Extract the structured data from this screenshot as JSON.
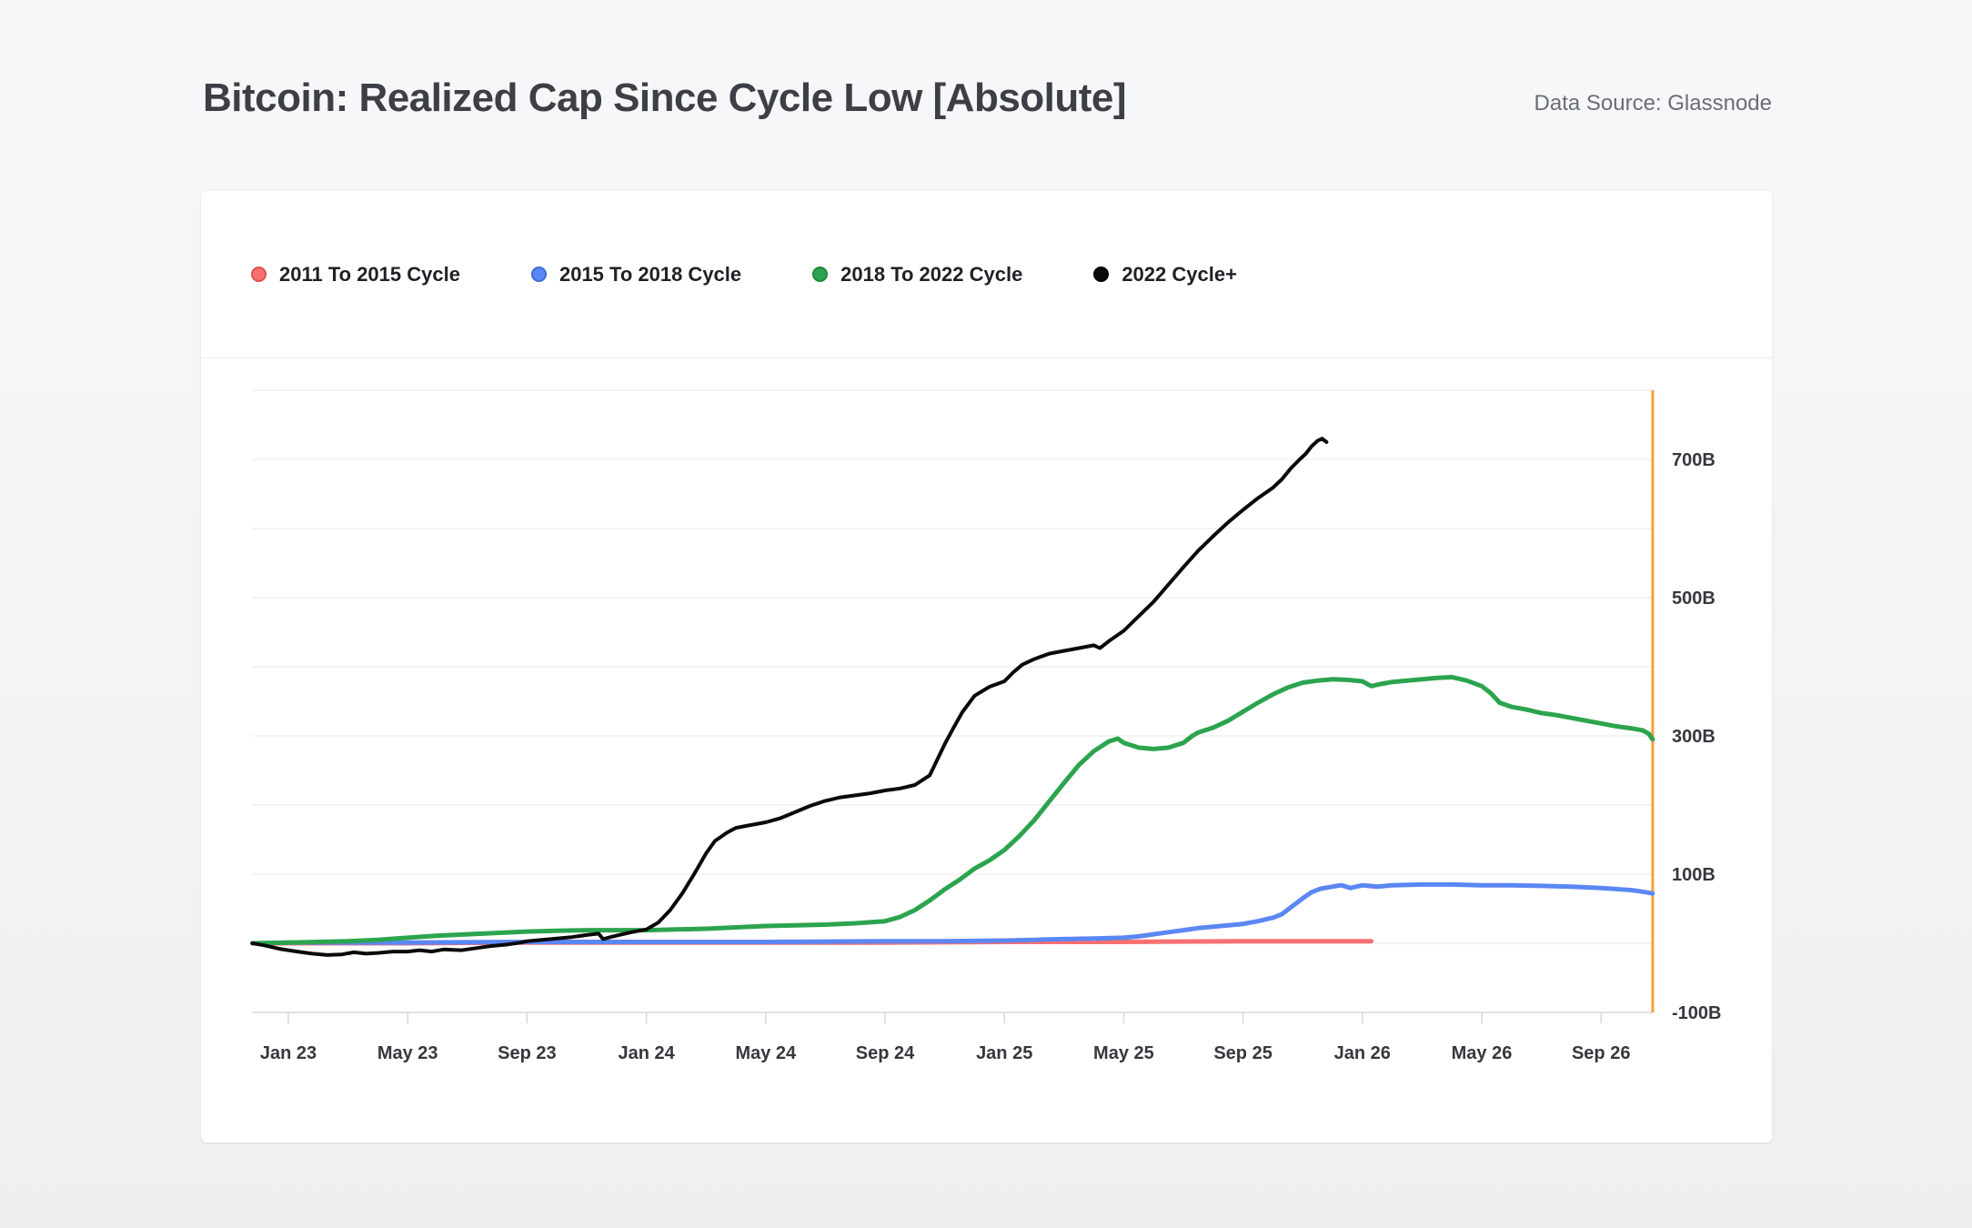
{
  "header": {
    "title": "Bitcoin: Realized Cap Since Cycle Low [Absolute]",
    "data_source": "Data Source: Glassnode"
  },
  "legend": {
    "items": [
      {
        "label": "2011 To 2015 Cycle",
        "color": "#f87070",
        "border_color": "#e04f4f"
      },
      {
        "label": "2015 To 2018 Cycle",
        "color": "#5b87f2",
        "border_color": "#3e68d8"
      },
      {
        "label": "2018 To 2022 Cycle",
        "color": "#2ca44e",
        "border_color": "#1e8a3c"
      },
      {
        "label": "2022 Cycle+",
        "color": "#0a0a0a",
        "border_color": "#000000"
      }
    ]
  },
  "chart_data": {
    "type": "line",
    "title": "Bitcoin: Realized Cap Since Cycle Low [Absolute]",
    "x_unit": "months since Jan 2023",
    "xlim": [
      -1.3,
      45.8
    ],
    "ylim": [
      -100,
      800
    ],
    "grid": "horizontal-only",
    "gridline_values": [
      800,
      700,
      600,
      500,
      400,
      300,
      200,
      100,
      0,
      -100
    ],
    "y_axis_side": "right",
    "y_ticks": [
      {
        "label": "700B",
        "value": 700
      },
      {
        "label": "500B",
        "value": 500
      },
      {
        "label": "300B",
        "value": 300
      },
      {
        "label": "100B",
        "value": 100
      },
      {
        "label": "-100B",
        "value": -100
      }
    ],
    "x_ticks": [
      {
        "label": "Jan 23",
        "t": 0
      },
      {
        "label": "May 23",
        "t": 4
      },
      {
        "label": "Sep 23",
        "t": 8
      },
      {
        "label": "Jan 24",
        "t": 12
      },
      {
        "label": "May 24",
        "t": 16
      },
      {
        "label": "Sep 24",
        "t": 20
      },
      {
        "label": "Jan 25",
        "t": 24
      },
      {
        "label": "May 25",
        "t": 28
      },
      {
        "label": "Sep 25",
        "t": 32
      },
      {
        "label": "Jan 26",
        "t": 36
      },
      {
        "label": "May 26",
        "t": 40
      },
      {
        "label": "Sep 26",
        "t": 44
      }
    ],
    "end_marker_line": {
      "t": 45.73,
      "color": "#f9a03a",
      "name": "cycle-window-end-marker"
    },
    "colors": {
      "gridline": "#f0f0f3",
      "baseline": "#e2e2e6",
      "tick": "#d6d7db",
      "axis_text": "#35383d"
    },
    "unit": "USD billions",
    "series": [
      {
        "name": "2011 To 2015 Cycle",
        "color": "#f87070",
        "width": 5,
        "points": [
          [
            -1.2,
            0
          ],
          [
            0,
            0
          ],
          [
            4,
            0
          ],
          [
            8,
            1
          ],
          [
            12,
            1
          ],
          [
            16,
            1
          ],
          [
            20,
            1
          ],
          [
            24,
            2
          ],
          [
            28,
            2
          ],
          [
            32,
            3
          ],
          [
            34,
            3
          ],
          [
            36,
            3
          ],
          [
            36.3,
            3
          ]
        ]
      },
      {
        "name": "2015 To 2018 Cycle",
        "color": "#5b87f2",
        "width": 5,
        "points": [
          [
            -1.2,
            0
          ],
          [
            0,
            1
          ],
          [
            4,
            1
          ],
          [
            8,
            2
          ],
          [
            12,
            2
          ],
          [
            16,
            2
          ],
          [
            20,
            3
          ],
          [
            22,
            3
          ],
          [
            24,
            4
          ],
          [
            25,
            5
          ],
          [
            26,
            6
          ],
          [
            27,
            7
          ],
          [
            28,
            8
          ],
          [
            28.5,
            10
          ],
          [
            29,
            13
          ],
          [
            29.5,
            16
          ],
          [
            30,
            19
          ],
          [
            30.5,
            22
          ],
          [
            31,
            24
          ],
          [
            31.5,
            26
          ],
          [
            32,
            28
          ],
          [
            32.5,
            32
          ],
          [
            33,
            37
          ],
          [
            33.3,
            42
          ],
          [
            33.6,
            52
          ],
          [
            34,
            65
          ],
          [
            34.3,
            74
          ],
          [
            34.6,
            79
          ],
          [
            35,
            82
          ],
          [
            35.3,
            84
          ],
          [
            35.6,
            80
          ],
          [
            36,
            84
          ],
          [
            36.5,
            82
          ],
          [
            37,
            84
          ],
          [
            38,
            85
          ],
          [
            39,
            85
          ],
          [
            40,
            84
          ],
          [
            41,
            84
          ],
          [
            42,
            83
          ],
          [
            43,
            82
          ],
          [
            44,
            80
          ],
          [
            45,
            77
          ],
          [
            45.5,
            74
          ],
          [
            45.73,
            72
          ]
        ]
      },
      {
        "name": "2018 To 2022 Cycle",
        "color": "#2ca44e",
        "width": 5,
        "points": [
          [
            -1.2,
            0
          ],
          [
            0,
            1
          ],
          [
            1,
            2
          ],
          [
            2,
            3
          ],
          [
            3,
            5
          ],
          [
            4,
            8
          ],
          [
            5,
            11
          ],
          [
            6,
            13
          ],
          [
            7,
            15
          ],
          [
            8,
            17
          ],
          [
            9,
            18
          ],
          [
            10,
            19
          ],
          [
            11,
            19
          ],
          [
            12,
            19
          ],
          [
            13,
            20
          ],
          [
            14,
            21
          ],
          [
            15,
            23
          ],
          [
            16,
            25
          ],
          [
            17,
            26
          ],
          [
            18,
            27
          ],
          [
            19,
            29
          ],
          [
            20,
            32
          ],
          [
            20.5,
            38
          ],
          [
            21,
            48
          ],
          [
            21.5,
            62
          ],
          [
            22,
            78
          ],
          [
            22.5,
            92
          ],
          [
            23,
            108
          ],
          [
            23.5,
            120
          ],
          [
            24,
            135
          ],
          [
            24.5,
            155
          ],
          [
            25,
            178
          ],
          [
            25.5,
            205
          ],
          [
            26,
            232
          ],
          [
            26.5,
            258
          ],
          [
            27,
            278
          ],
          [
            27.5,
            292
          ],
          [
            27.8,
            296
          ],
          [
            28,
            290
          ],
          [
            28.5,
            283
          ],
          [
            29,
            281
          ],
          [
            29.5,
            283
          ],
          [
            30,
            290
          ],
          [
            30.3,
            300
          ],
          [
            30.5,
            305
          ],
          [
            31,
            312
          ],
          [
            31.5,
            322
          ],
          [
            32,
            335
          ],
          [
            32.5,
            348
          ],
          [
            33,
            360
          ],
          [
            33.5,
            370
          ],
          [
            34,
            377
          ],
          [
            34.5,
            380
          ],
          [
            35,
            382
          ],
          [
            35.5,
            381
          ],
          [
            36,
            379
          ],
          [
            36.3,
            372
          ],
          [
            36.6,
            375
          ],
          [
            37,
            378
          ],
          [
            37.5,
            380
          ],
          [
            38,
            382
          ],
          [
            38.5,
            384
          ],
          [
            39,
            385
          ],
          [
            39.5,
            380
          ],
          [
            40,
            372
          ],
          [
            40.3,
            362
          ],
          [
            40.6,
            348
          ],
          [
            41,
            342
          ],
          [
            41.5,
            338
          ],
          [
            42,
            333
          ],
          [
            42.5,
            330
          ],
          [
            43,
            326
          ],
          [
            43.5,
            322
          ],
          [
            44,
            318
          ],
          [
            44.5,
            314
          ],
          [
            45,
            311
          ],
          [
            45.4,
            308
          ],
          [
            45.6,
            303
          ],
          [
            45.73,
            295
          ]
        ]
      },
      {
        "name": "2022 Cycle+",
        "color": "#0a0a0a",
        "width": 4,
        "points": [
          [
            -1.2,
            0
          ],
          [
            -0.8,
            -3
          ],
          [
            -0.3,
            -8
          ],
          [
            0.3,
            -12
          ],
          [
            0.8,
            -15
          ],
          [
            1.3,
            -17
          ],
          [
            1.8,
            -16
          ],
          [
            2.2,
            -13
          ],
          [
            2.6,
            -15
          ],
          [
            3,
            -14
          ],
          [
            3.5,
            -12
          ],
          [
            4,
            -12
          ],
          [
            4.4,
            -10
          ],
          [
            4.8,
            -12
          ],
          [
            5.2,
            -9
          ],
          [
            5.8,
            -10
          ],
          [
            6.3,
            -7
          ],
          [
            6.8,
            -4
          ],
          [
            7.3,
            -2
          ],
          [
            7.8,
            1
          ],
          [
            8,
            3
          ],
          [
            8.5,
            5
          ],
          [
            9,
            7
          ],
          [
            9.5,
            9
          ],
          [
            10,
            12
          ],
          [
            10.4,
            14
          ],
          [
            10.55,
            6
          ],
          [
            10.8,
            9
          ],
          [
            11,
            11
          ],
          [
            11.5,
            16
          ],
          [
            12,
            20
          ],
          [
            12.4,
            30
          ],
          [
            12.8,
            48
          ],
          [
            13.2,
            72
          ],
          [
            13.6,
            100
          ],
          [
            14,
            130
          ],
          [
            14.3,
            148
          ],
          [
            14.7,
            160
          ],
          [
            15,
            167
          ],
          [
            15.5,
            171
          ],
          [
            16,
            175
          ],
          [
            16.5,
            181
          ],
          [
            17,
            190
          ],
          [
            17.5,
            199
          ],
          [
            18,
            206
          ],
          [
            18.5,
            211
          ],
          [
            19,
            214
          ],
          [
            19.5,
            217
          ],
          [
            20,
            221
          ],
          [
            20.5,
            224
          ],
          [
            21,
            229
          ],
          [
            21.5,
            243
          ],
          [
            22,
            288
          ],
          [
            22.3,
            312
          ],
          [
            22.6,
            335
          ],
          [
            23,
            358
          ],
          [
            23.5,
            371
          ],
          [
            24,
            379
          ],
          [
            24.3,
            392
          ],
          [
            24.6,
            403
          ],
          [
            25,
            411
          ],
          [
            25.5,
            419
          ],
          [
            26,
            423
          ],
          [
            26.5,
            427
          ],
          [
            27,
            431
          ],
          [
            27.2,
            427
          ],
          [
            27.5,
            437
          ],
          [
            28,
            452
          ],
          [
            28.5,
            473
          ],
          [
            29,
            494
          ],
          [
            29.5,
            519
          ],
          [
            30,
            544
          ],
          [
            30.5,
            568
          ],
          [
            31,
            589
          ],
          [
            31.5,
            609
          ],
          [
            32,
            627
          ],
          [
            32.5,
            644
          ],
          [
            33,
            659
          ],
          [
            33.3,
            671
          ],
          [
            33.6,
            687
          ],
          [
            33.9,
            700
          ],
          [
            34.1,
            708
          ],
          [
            34.3,
            719
          ],
          [
            34.5,
            727
          ],
          [
            34.65,
            730
          ],
          [
            34.8,
            725
          ]
        ]
      }
    ]
  }
}
